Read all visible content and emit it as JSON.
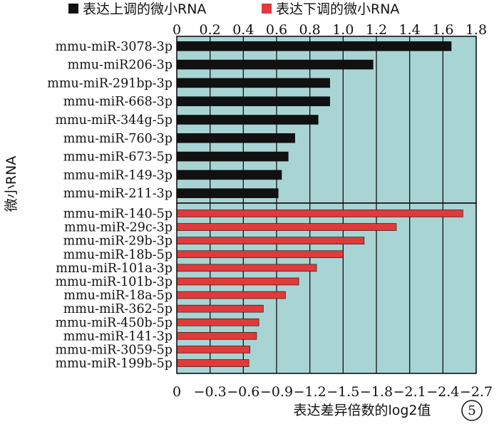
{
  "legend": {
    "up_label": "表达上调的微小RNA",
    "down_label": "表达下调的微小RNA"
  },
  "axes": {
    "xlabel": "表达差异倍数的log2值",
    "ylabel": "微小RNA",
    "top_ticks": [
      "0",
      "0.2",
      "0.4",
      "0.6",
      "0.8",
      "1.0",
      "1.2",
      "1.4",
      "1.6",
      "1.8"
    ],
    "bottom_ticks": [
      "0",
      "−0.3",
      "−0.6",
      "−0.9",
      "−1.2",
      "−1.5",
      "−1.8",
      "−2.1",
      "−2.4",
      "−2.7"
    ]
  },
  "badge": "5",
  "colors": {
    "plot_bg": "#a9d4d4",
    "up_bar": "#111111",
    "down_bar": "#e03a3a",
    "grid": "#111111"
  },
  "chart_data": [
    {
      "type": "bar",
      "orientation": "horizontal",
      "series": [
        {
          "name": "表达上调的微小RNA",
          "color": "#111111"
        }
      ],
      "categories": [
        "mmu-miR-3078-3p",
        "mmu-miR206-3p",
        "mmu-miR-291bp-3p",
        "mmu-miR-668-3p",
        "mmu-miR-344g-5p",
        "mmu-miR-760-3p",
        "mmu-miR-673-5p",
        "mmu-miR-149-3p",
        "mmu-miR-211-3p"
      ],
      "values": [
        1.65,
        1.18,
        0.92,
        0.92,
        0.85,
        0.71,
        0.67,
        0.63,
        0.61
      ],
      "xlim": [
        0,
        1.8
      ],
      "axis_position": "top",
      "grid": true
    },
    {
      "type": "bar",
      "orientation": "horizontal",
      "series": [
        {
          "name": "表达下调的微小RNA",
          "color": "#e03a3a"
        }
      ],
      "categories": [
        "mmu-miR-140-5p",
        "mmu-miR-29c-3p",
        "mmu-miR-29b-3p",
        "mmu-miR-18b-5p",
        "mmu-miR-101a-3p",
        "mmu-miR-101b-3p",
        "mmu-miR-18a-5p",
        "mmu-miR-362-5p",
        "mmu-miR-450b-5p",
        "mmu-miR-141-3p",
        "mmu-miR-3059-5p",
        "mmu-miR-199b-5p"
      ],
      "values": [
        -2.58,
        -1.98,
        -1.69,
        -1.5,
        -1.26,
        -1.1,
        -0.98,
        -0.78,
        -0.74,
        -0.72,
        -0.66,
        -0.65
      ],
      "xlim": [
        0,
        -2.7
      ],
      "axis_position": "bottom",
      "grid": true
    }
  ]
}
